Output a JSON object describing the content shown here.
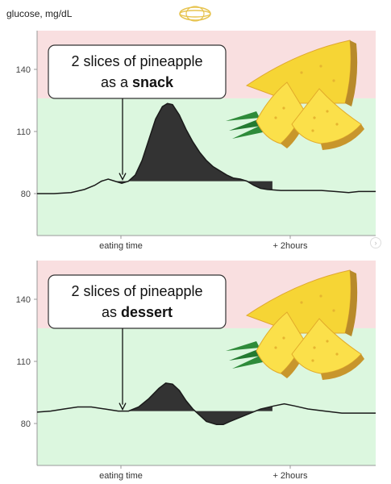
{
  "header": {
    "ylabel": "glucose, mg/dL"
  },
  "icons": {
    "logo": "orbit-logo-icon",
    "nav": "chevron-right-icon",
    "fruit": "pineapple-slices-image"
  },
  "colors": {
    "high_zone": "#f9dfe0",
    "normal_zone": "#dcf7df",
    "curve_fill": "#333333",
    "logo": "#e7c451"
  },
  "chart_data": [
    {
      "type": "area",
      "ylabel": "glucose, mg/dL",
      "y_ticks": [
        80,
        110,
        140
      ],
      "x_labels": [
        "eating time",
        "+ 2hours"
      ],
      "threshold_high": 126,
      "callout": {
        "line1": "2 slices of pineapple",
        "line2_prefix": "as a ",
        "line2_bold": "snack"
      },
      "baseline_value": 86,
      "curve": [
        [
          0,
          80
        ],
        [
          5,
          80
        ],
        [
          10,
          80.5
        ],
        [
          14,
          82
        ],
        [
          17,
          84
        ],
        [
          19,
          86
        ],
        [
          21,
          87
        ],
        [
          23,
          86
        ],
        [
          25,
          85
        ],
        [
          27,
          86
        ],
        [
          29,
          89
        ],
        [
          31,
          96
        ],
        [
          33,
          106
        ],
        [
          35,
          116
        ],
        [
          37,
          122
        ],
        [
          38.5,
          123.5
        ],
        [
          40,
          123
        ],
        [
          42,
          118
        ],
        [
          44,
          111
        ],
        [
          46,
          105
        ],
        [
          48,
          100
        ],
        [
          50,
          96
        ],
        [
          52,
          93
        ],
        [
          54,
          91
        ],
        [
          56,
          89
        ],
        [
          58,
          87.5
        ],
        [
          60,
          87
        ],
        [
          62,
          86
        ],
        [
          64,
          84
        ],
        [
          66,
          82.5
        ],
        [
          68,
          82
        ],
        [
          72,
          81.5
        ],
        [
          78,
          81.5
        ],
        [
          84,
          81.5
        ],
        [
          88,
          81
        ],
        [
          92,
          80.5
        ],
        [
          95,
          81
        ],
        [
          100,
          81
        ]
      ],
      "shaded_x_range": [
        23.5,
        69.5
      ]
    },
    {
      "type": "area",
      "ylabel": "glucose, mg/dL",
      "y_ticks": [
        80,
        110,
        140
      ],
      "x_labels": [
        "eating time",
        "+ 2hours"
      ],
      "threshold_high": 126,
      "callout": {
        "line1": "2 slices of pineapple",
        "line2_prefix": "as ",
        "line2_bold": "dessert"
      },
      "baseline_value": 86,
      "curve": [
        [
          0,
          85.5
        ],
        [
          4,
          86
        ],
        [
          8,
          87
        ],
        [
          12,
          88
        ],
        [
          16,
          88
        ],
        [
          20,
          87
        ],
        [
          24,
          86
        ],
        [
          27,
          86
        ],
        [
          30,
          88
        ],
        [
          33,
          92
        ],
        [
          36,
          97
        ],
        [
          38,
          99.5
        ],
        [
          40,
          99
        ],
        [
          42,
          96
        ],
        [
          44,
          91
        ],
        [
          46,
          87
        ],
        [
          48,
          84
        ],
        [
          50,
          81
        ],
        [
          53,
          79.5
        ],
        [
          55,
          79.5
        ],
        [
          57,
          81
        ],
        [
          60,
          83
        ],
        [
          63,
          85
        ],
        [
          66,
          87
        ],
        [
          70,
          88.5
        ],
        [
          73,
          89.5
        ],
        [
          76,
          88.5
        ],
        [
          80,
          87
        ],
        [
          85,
          86
        ],
        [
          90,
          85
        ],
        [
          95,
          85
        ],
        [
          100,
          85
        ]
      ],
      "shaded_x_range": [
        27,
        69.5
      ]
    }
  ]
}
